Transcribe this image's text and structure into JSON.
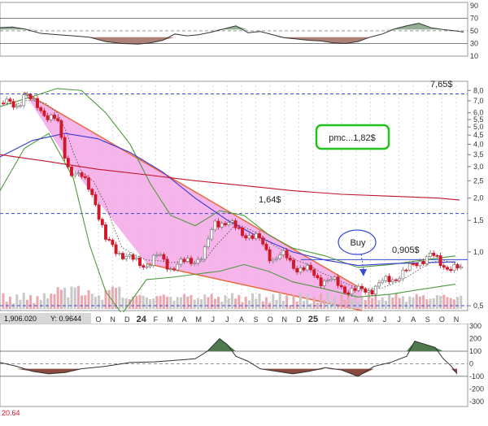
{
  "chart_data": [
    {
      "panel": "rsi",
      "type": "line",
      "ylim": [
        10,
        95
      ],
      "y_ticks": [
        "90",
        "70",
        "50",
        "30",
        "10"
      ],
      "ref_lines": [
        70,
        50,
        30
      ],
      "x": [
        0,
        15,
        30,
        50,
        70,
        90,
        110,
        130,
        150,
        170,
        185,
        200,
        215,
        230,
        245,
        260,
        275,
        290,
        305,
        320,
        335,
        350,
        365,
        380,
        395,
        410,
        425,
        440,
        455,
        470,
        485,
        500,
        515,
        530,
        545,
        560,
        570
      ],
      "values": [
        55,
        56,
        53,
        46,
        44,
        42,
        40,
        33,
        30,
        29,
        31,
        35,
        45,
        42,
        44,
        48,
        53,
        58,
        47,
        49,
        44,
        39,
        37,
        35,
        34,
        31,
        30,
        33,
        40,
        45,
        53,
        58,
        62,
        55,
        52,
        50,
        48
      ]
    },
    {
      "panel": "price",
      "type": "candlestick",
      "scale": "log",
      "ylim": [
        0.47,
        9.0
      ],
      "y_ticks": [
        "8,0",
        "7,0",
        "6,0",
        "5,5",
        "5,0",
        "4,5",
        "4,0",
        "3,5",
        "3,0",
        "2,5",
        "2,0",
        "1,5",
        "1,0",
        "0,5"
      ],
      "tick_values": [
        8,
        7,
        6,
        5.5,
        5,
        4.5,
        4,
        3.5,
        3,
        2.5,
        2,
        1.5,
        1,
        0.5
      ],
      "x_tick_labels": [
        "O",
        "N",
        "D",
        "24",
        "F",
        "M",
        "A",
        "M",
        "J",
        "J",
        "A",
        "S",
        "O",
        "N",
        "D",
        "25",
        "F",
        "M",
        "A",
        "M",
        "J",
        "J",
        "A",
        "S",
        "O",
        "N"
      ],
      "horizontal_levels": [
        {
          "value": 7.65,
          "label": "7,65$"
        },
        {
          "value": 1.64,
          "label": "1,64$"
        },
        {
          "value": 0.905,
          "label": "0,905$"
        }
      ],
      "annotations": [
        "pmc...1,82$",
        "Buy"
      ],
      "price_path": {
        "x": [
          5,
          20,
          30,
          40,
          55,
          70,
          82,
          90,
          100,
          115,
          130,
          140,
          150,
          165,
          180,
          195,
          210,
          230,
          250,
          265,
          280,
          290,
          305,
          320,
          335,
          350,
          365,
          380,
          395,
          410,
          425,
          440,
          455,
          470,
          485,
          500,
          515,
          530,
          545,
          560,
          570
        ],
        "y": [
          6.8,
          6.5,
          7.8,
          6.8,
          6.0,
          5.4,
          3.1,
          2.8,
          2.6,
          2.1,
          1.15,
          1.05,
          0.98,
          0.88,
          0.85,
          0.95,
          0.82,
          0.88,
          0.95,
          1.5,
          1.45,
          1.35,
          1.25,
          1.15,
          0.92,
          0.95,
          0.82,
          0.78,
          0.7,
          0.68,
          0.62,
          0.6,
          0.62,
          0.67,
          0.72,
          0.78,
          0.9,
          0.95,
          0.85,
          0.8,
          0.78
        ]
      },
      "ma_long": {
        "x": [
          0,
          60,
          120,
          180,
          240,
          300,
          360,
          420,
          480,
          540,
          565
        ],
        "y": [
          3.5,
          3.2,
          2.9,
          2.7,
          2.5,
          2.35,
          2.2,
          2.1,
          2.05,
          2.0,
          1.95
        ]
      },
      "ma_mid": {
        "x": [
          0,
          40,
          80,
          120,
          160,
          200,
          240,
          280,
          320,
          360,
          400,
          440,
          480,
          520,
          560
        ],
        "y": [
          3.4,
          4.2,
          4.6,
          4.3,
          3.6,
          2.8,
          2.0,
          1.5,
          1.2,
          1.0,
          0.9,
          0.84,
          0.86,
          0.87,
          0.88
        ]
      },
      "band_upper": {
        "x": [
          0,
          40,
          70,
          100,
          130,
          160,
          185,
          210,
          240,
          270,
          300,
          330,
          360,
          400,
          440,
          480,
          520,
          560
        ],
        "y": [
          6.5,
          7.4,
          8.2,
          8.0,
          6.0,
          4.0,
          2.4,
          1.6,
          1.4,
          1.7,
          1.6,
          1.25,
          1.05,
          0.95,
          0.82,
          0.85,
          0.9,
          0.95
        ]
      },
      "band_lower": {
        "x": [
          0,
          30,
          60,
          90,
          110,
          130,
          150,
          180,
          210,
          240,
          270,
          300,
          330,
          360,
          400,
          440,
          480,
          520,
          560
        ],
        "y": [
          2.2,
          3.8,
          4.6,
          2.6,
          1.1,
          0.6,
          0.45,
          0.7,
          0.72,
          0.75,
          0.78,
          0.85,
          0.78,
          0.68,
          0.62,
          0.56,
          0.58,
          0.62,
          0.66
        ]
      }
    },
    {
      "panel": "oscillator",
      "type": "line",
      "ylim": [
        -340,
        320
      ],
      "y_ticks": [
        "300",
        "200",
        "100",
        "0",
        "-100",
        "-200",
        "-300"
      ],
      "ref_lines": [
        100,
        0,
        -100
      ],
      "x": [
        0,
        20,
        40,
        60,
        80,
        100,
        130,
        160,
        190,
        220,
        240,
        255,
        270,
        280,
        290,
        305,
        320,
        340,
        360,
        380,
        400,
        420,
        440,
        460,
        480,
        500,
        510,
        520,
        535,
        545,
        555,
        562
      ],
      "values": [
        10,
        -20,
        -60,
        -80,
        -70,
        -40,
        -20,
        10,
        15,
        30,
        40,
        100,
        200,
        150,
        60,
        20,
        -40,
        -60,
        -80,
        -60,
        -30,
        -50,
        -100,
        -20,
        10,
        60,
        180,
        160,
        130,
        40,
        -20,
        -80
      ]
    }
  ],
  "labels": {
    "pmc": "pmc...1,82$",
    "buy": "Buy",
    "level_765": "7,65$",
    "level_164": "1,64$",
    "level_0905": "0,905$",
    "readout": "1,906.020",
    "readout_y": "Y: 0.9644",
    "bottom_left": "20.64"
  },
  "colors": {
    "candle_up": "#7a7a7a",
    "candle_down": "#d01828",
    "wedge_fill": "#f3a7e6",
    "ma_long": "#c01428",
    "ma_mid": "#3a3ad0",
    "bands": "#4d9a3e",
    "pmc_border": "#21c21b",
    "level_line": "#3a4bd6",
    "osc_fill_pos": "#4e7a4e",
    "osc_fill_neg": "#8a4a3e"
  }
}
